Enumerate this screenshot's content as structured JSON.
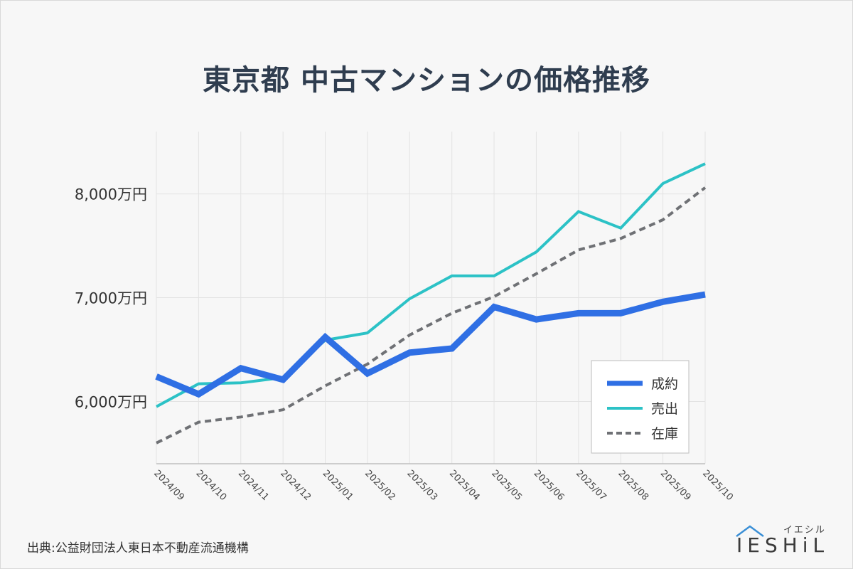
{
  "title": "東京都 中古マンションの価格推移",
  "source": "出典:公益財団法人東日本不動産流通機構",
  "logo": {
    "wordmark": "IESHiL",
    "kana": "イエシル"
  },
  "chart_data": {
    "type": "line",
    "title": "東京都 中古マンションの価格推移",
    "x": [
      "2024/09",
      "2024/10",
      "2024/11",
      "2024/12",
      "2025/01",
      "2025/02",
      "2025/03",
      "2025/04",
      "2025/05",
      "2025/06",
      "2025/07",
      "2025/08",
      "2025/09",
      "2025/10"
    ],
    "yticks": [
      6000,
      7000,
      8000
    ],
    "ytick_labels": [
      "6,000万円",
      "7,000万円",
      "8,000万円"
    ],
    "ylim": [
      5400,
      8600
    ],
    "grid": true,
    "legend_position": "bottom-right",
    "series": [
      {
        "name": "成約",
        "color": "#2f6fe4",
        "style": "solid-thick",
        "values": [
          6240,
          6070,
          6320,
          6210,
          6620,
          6270,
          6470,
          6510,
          6910,
          6790,
          6850,
          6850,
          6960,
          7030
        ]
      },
      {
        "name": "売出",
        "color": "#2cc2c6",
        "style": "solid",
        "values": [
          5950,
          6170,
          6180,
          6230,
          6590,
          6660,
          6990,
          7210,
          7210,
          7440,
          7830,
          7670,
          8100,
          8290
        ]
      },
      {
        "name": "在庫",
        "color": "#6f7175",
        "style": "dashed",
        "values": [
          5600,
          5800,
          5850,
          5920,
          6150,
          6360,
          6640,
          6850,
          7010,
          7230,
          7460,
          7570,
          7750,
          8060
        ]
      }
    ]
  }
}
